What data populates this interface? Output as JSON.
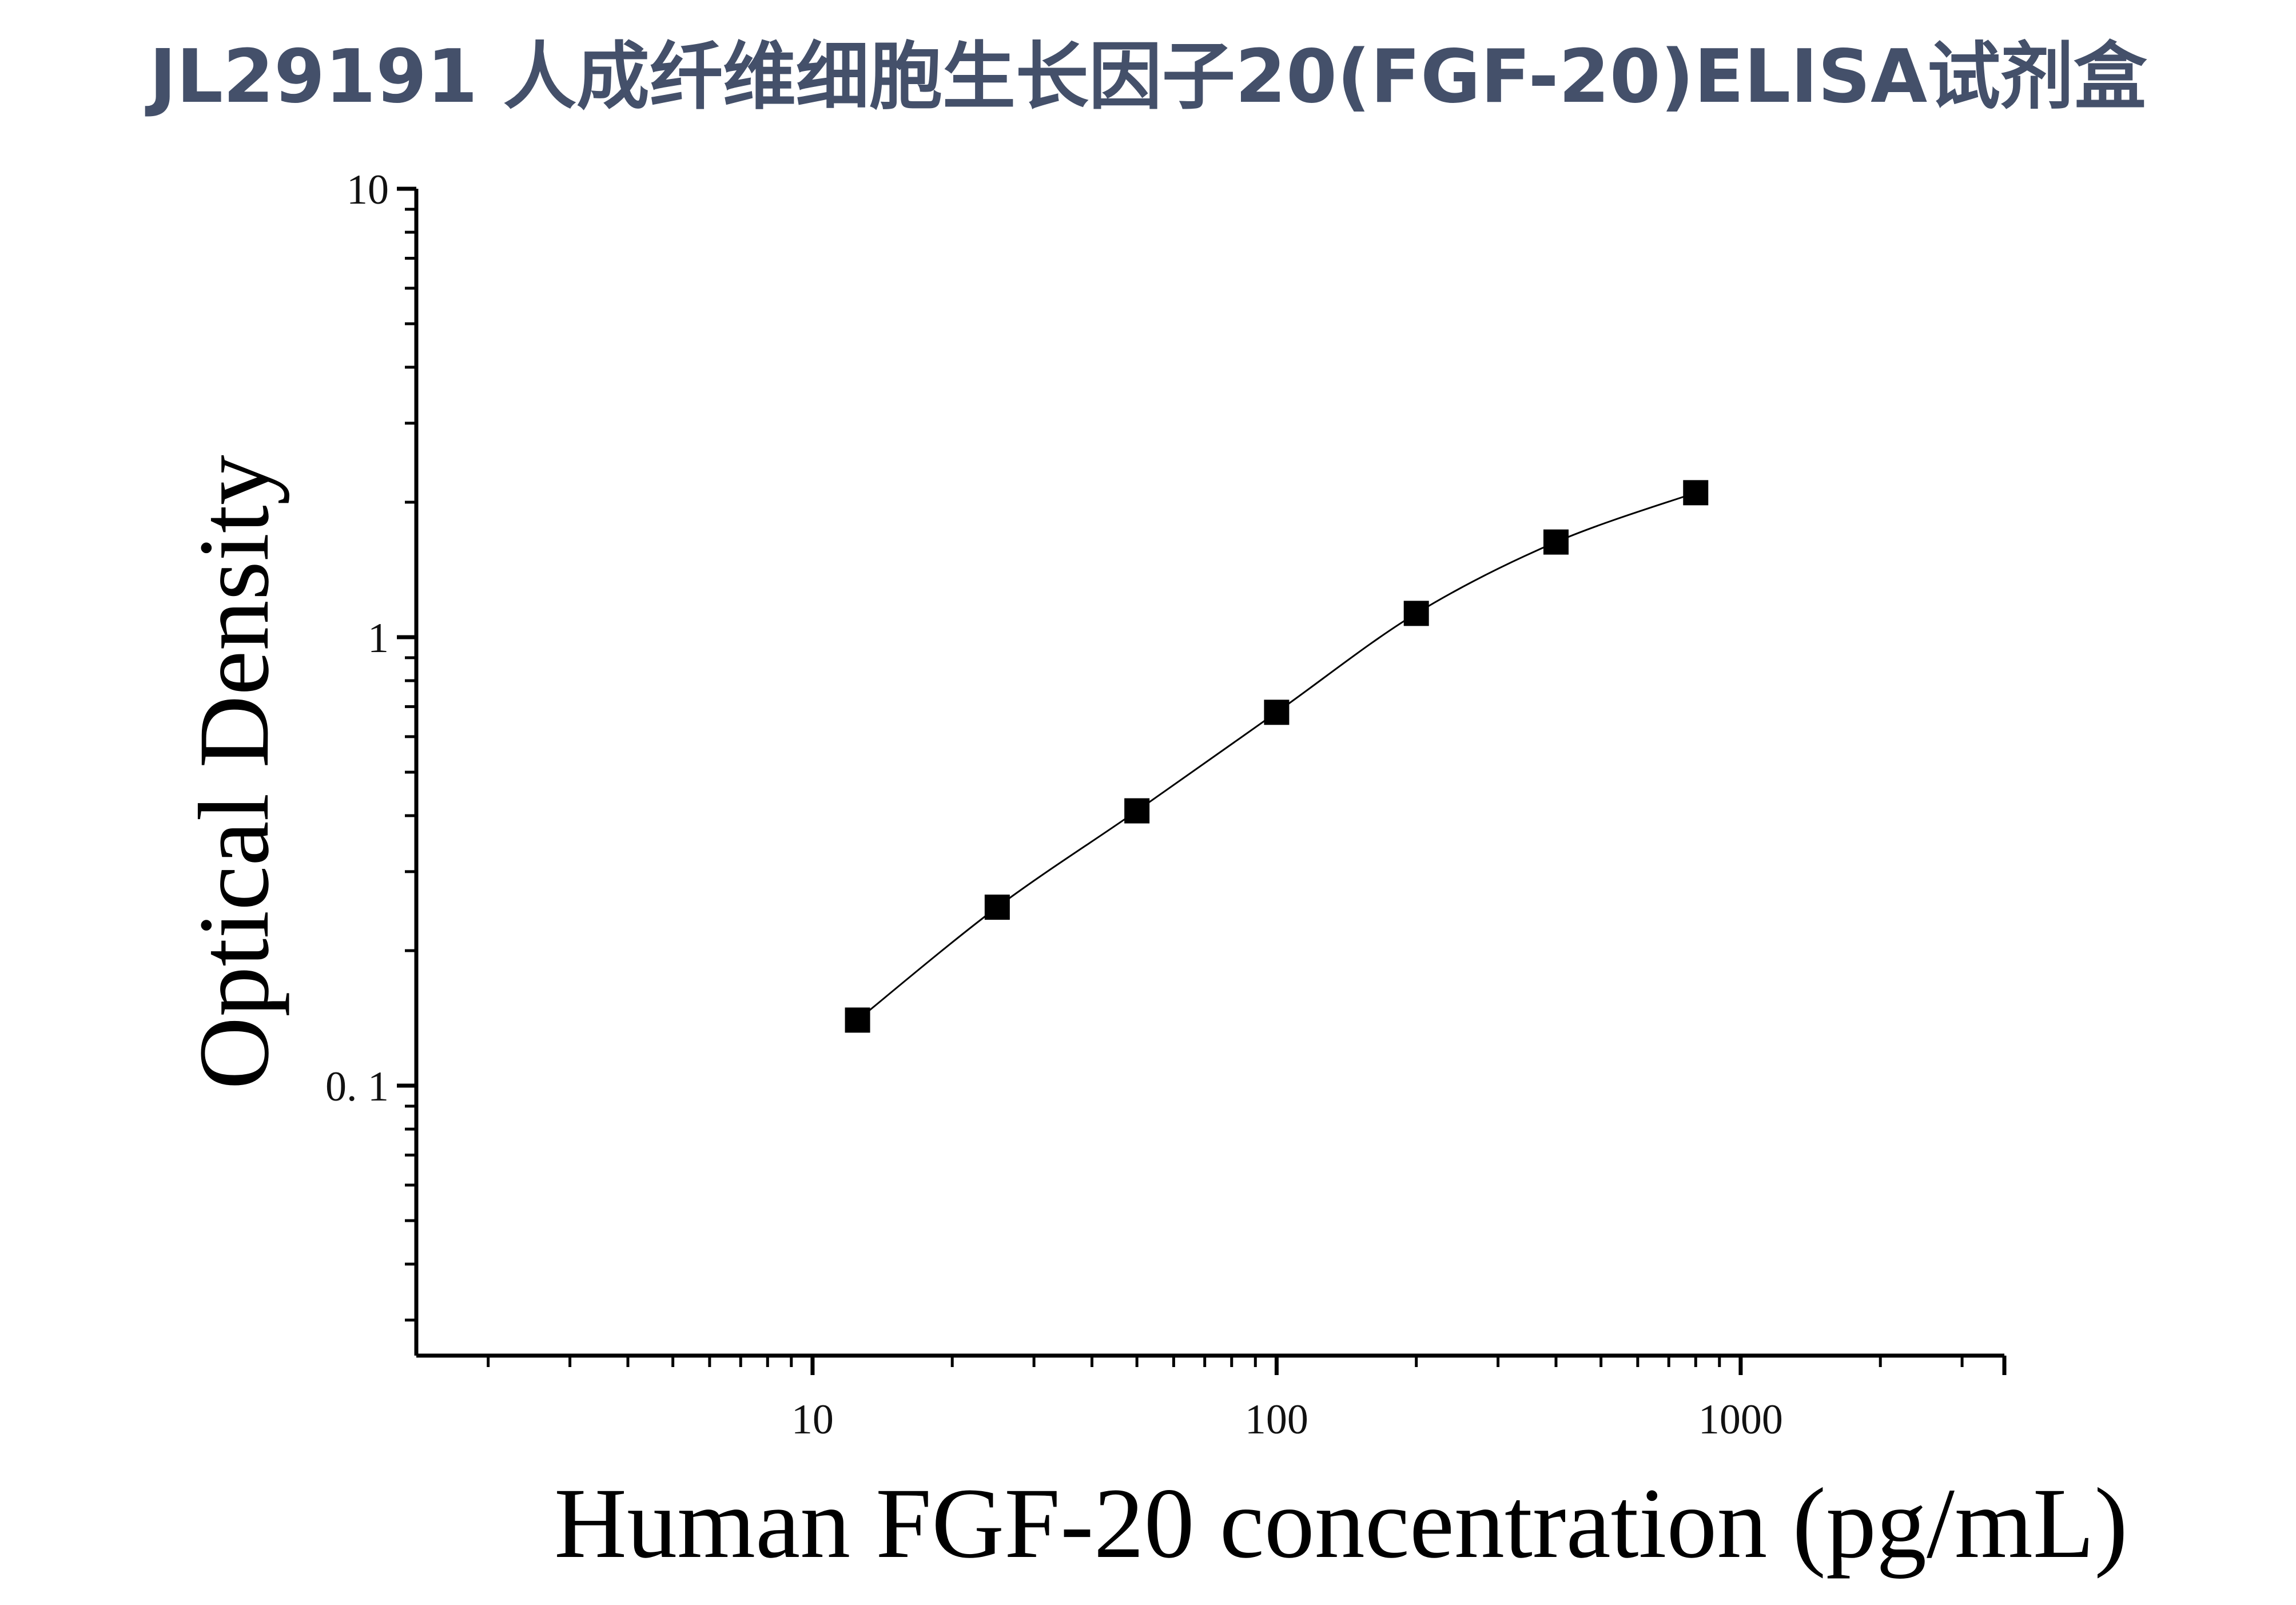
{
  "page": {
    "title": "JL29191 人成纤维细胞生长因子20(FGF-20)ELISA试剂盒"
  },
  "chart_data": {
    "type": "scatter",
    "xlabel": "Human FGF-20 concentration (pg/mL)",
    "ylabel": "Optical Density",
    "xscale": "log",
    "yscale": "log",
    "xlim": [
      1.4,
      3700
    ],
    "ylim": [
      0.025,
      10
    ],
    "x_ticks": [
      {
        "value": 10,
        "label": "10"
      },
      {
        "value": 100,
        "label": "100"
      },
      {
        "value": 1000,
        "label": "1000"
      }
    ],
    "y_ticks": [
      {
        "value": 0.1,
        "label": "0. 1"
      },
      {
        "value": 1,
        "label": "1"
      },
      {
        "value": 10,
        "label": "10"
      }
    ],
    "grid": false,
    "legend": "none",
    "marker": "square",
    "series": [
      {
        "x": [
          12.5,
          25,
          50,
          100,
          200,
          400,
          800
        ],
        "y": [
          0.14,
          0.25,
          0.41,
          0.68,
          1.13,
          1.63,
          2.1
        ]
      }
    ],
    "fit_curve": "smooth fitted curve through standards",
    "colors": {
      "marker": "#000000",
      "line": "#000000",
      "title": "#44506a"
    }
  }
}
